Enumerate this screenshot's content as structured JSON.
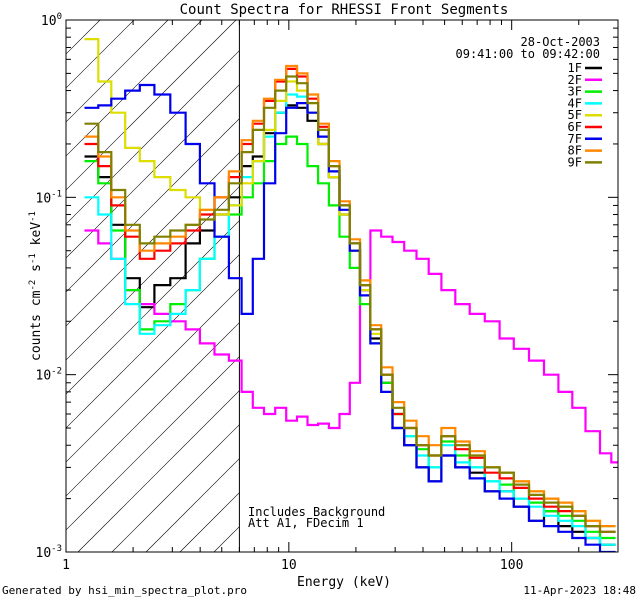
{
  "chart_data": {
    "type": "line",
    "title": "Count Spectra for RHESSI Front Segments",
    "xlabel": "Energy (keV)",
    "ylabel": "counts cm^-2 s^-1 keV^-1",
    "ylabel_parts": {
      "base": "counts cm",
      "exp1": "-2",
      "s": " s",
      "exp2": "-1",
      "kev": " keV",
      "exp3": "-1"
    },
    "xscale": "log",
    "yscale": "log",
    "xlim": [
      1,
      300
    ],
    "ylim": [
      0.001,
      1
    ],
    "x_ticks": [
      {
        "value": 10,
        "label": "10"
      },
      {
        "value": 100,
        "label": "100"
      }
    ],
    "x_edge_label": "1",
    "y_ticks": [
      {
        "value": 1,
        "base": "10",
        "exp": "0"
      },
      {
        "value": 0.1,
        "base": "10",
        "exp": "-1"
      },
      {
        "value": 0.01,
        "base": "10",
        "exp": "-2"
      },
      {
        "value": 0.001,
        "base": "10",
        "exp": "-3"
      }
    ],
    "date": "28-Oct-2003",
    "time_range": "09:41:00 to 09:42:00",
    "shaded_region_upper_keV": 6,
    "annotations": [
      "Includes Background",
      "Att A1, FDecim 1"
    ],
    "footer_left": "Generated by hsi_min_spectra_plot.pro",
    "footer_right": "11-Apr-2023 18:48",
    "series": [
      {
        "name": "1F",
        "color": "#000000",
        "x": [
          1.3,
          1.5,
          1.7,
          2.0,
          2.3,
          2.7,
          3.2,
          3.7,
          4.3,
          5.0,
          5.8,
          6.5,
          7.3,
          8.2,
          9.2,
          10.3,
          11.5,
          12.8,
          14.3,
          16.0,
          17.8,
          19.8,
          22.0,
          24.5,
          27.5,
          31,
          35,
          40,
          45,
          52,
          60,
          70,
          82,
          95,
          110,
          130,
          150,
          175,
          200,
          230,
          270
        ],
        "y": [
          0.17,
          0.13,
          0.07,
          0.035,
          0.024,
          0.032,
          0.035,
          0.055,
          0.065,
          0.08,
          0.1,
          0.15,
          0.17,
          0.23,
          0.3,
          0.33,
          0.32,
          0.27,
          0.2,
          0.13,
          0.08,
          0.05,
          0.03,
          0.016,
          0.009,
          0.005,
          0.004,
          0.003,
          0.0025,
          0.0035,
          0.003,
          0.0028,
          0.0022,
          0.0022,
          0.0018,
          0.0015,
          0.0017,
          0.0014,
          0.0013,
          0.0012,
          0.0011
        ]
      },
      {
        "name": "2F",
        "color": "#ff00ff",
        "x": [
          1.3,
          1.5,
          1.7,
          2.0,
          2.3,
          2.7,
          3.2,
          3.7,
          4.3,
          5.0,
          5.8,
          6.5,
          7.3,
          8.2,
          9.2,
          10.3,
          11.5,
          12.8,
          14.3,
          16.0,
          17.8,
          19.8,
          22.0,
          24.5,
          27.5,
          31,
          35,
          40,
          45,
          52,
          60,
          70,
          82,
          95,
          110,
          130,
          150,
          175,
          200,
          230,
          270,
          290
        ],
        "y": [
          0.065,
          0.055,
          0.045,
          0.03,
          0.025,
          0.022,
          0.02,
          0.018,
          0.015,
          0.013,
          0.012,
          0.008,
          0.0065,
          0.006,
          0.0065,
          0.0055,
          0.0058,
          0.0052,
          0.0053,
          0.005,
          0.006,
          0.009,
          0.03,
          0.065,
          0.06,
          0.056,
          0.05,
          0.045,
          0.037,
          0.03,
          0.025,
          0.022,
          0.02,
          0.016,
          0.014,
          0.012,
          0.01,
          0.008,
          0.0065,
          0.0048,
          0.0036,
          0.0032
        ]
      },
      {
        "name": "3F",
        "color": "#00ee00",
        "x": [
          1.3,
          1.5,
          1.7,
          2.0,
          2.3,
          2.7,
          3.2,
          3.7,
          4.3,
          5.0,
          5.8,
          6.5,
          7.3,
          8.2,
          9.2,
          10.3,
          11.5,
          12.8,
          14.3,
          16.0,
          17.8,
          19.8,
          22.0,
          24.5,
          27.5,
          31,
          35,
          40,
          45,
          52,
          60,
          70,
          82,
          95,
          110,
          130,
          150,
          175,
          200,
          230,
          270
        ],
        "y": [
          0.16,
          0.12,
          0.065,
          0.03,
          0.018,
          0.02,
          0.025,
          0.03,
          0.045,
          0.06,
          0.08,
          0.1,
          0.12,
          0.16,
          0.2,
          0.22,
          0.2,
          0.15,
          0.12,
          0.09,
          0.06,
          0.04,
          0.025,
          0.015,
          0.009,
          0.006,
          0.0045,
          0.0038,
          0.003,
          0.0042,
          0.0035,
          0.003,
          0.0025,
          0.0024,
          0.002,
          0.0019,
          0.0017,
          0.0016,
          0.0015,
          0.0013,
          0.0012
        ]
      },
      {
        "name": "4F",
        "color": "#00ffff",
        "x": [
          1.3,
          1.5,
          1.7,
          2.0,
          2.3,
          2.7,
          3.2,
          3.7,
          4.3,
          5.0,
          5.8,
          6.5,
          7.3,
          8.2,
          9.2,
          10.3,
          11.5,
          12.8,
          14.3,
          16.0,
          17.8,
          19.8,
          22.0,
          24.5,
          27.5,
          31,
          35,
          40,
          45,
          52,
          60,
          70,
          82,
          95,
          110,
          130,
          150,
          175,
          200,
          230,
          270
        ],
        "y": [
          0.1,
          0.08,
          0.045,
          0.025,
          0.017,
          0.019,
          0.022,
          0.03,
          0.045,
          0.06,
          0.09,
          0.13,
          0.16,
          0.22,
          0.3,
          0.38,
          0.37,
          0.3,
          0.22,
          0.14,
          0.09,
          0.055,
          0.032,
          0.018,
          0.01,
          0.006,
          0.0045,
          0.0035,
          0.003,
          0.004,
          0.0032,
          0.003,
          0.0025,
          0.0022,
          0.002,
          0.0018,
          0.0016,
          0.0015,
          0.0014,
          0.0012,
          0.0011
        ]
      },
      {
        "name": "5F",
        "color": "#dddd00",
        "x": [
          1.3,
          1.5,
          1.7,
          2.0,
          2.3,
          2.7,
          3.2,
          3.7,
          4.3,
          5.0,
          5.8,
          6.5,
          7.3,
          8.2,
          9.2,
          10.3,
          11.5,
          12.8,
          14.3,
          16.0,
          17.8,
          19.8,
          22.0,
          24.5,
          27.5,
          31,
          35,
          40,
          45,
          52,
          60,
          70,
          82,
          95,
          110,
          130,
          150,
          175,
          200,
          230,
          270
        ],
        "y": [
          0.78,
          0.45,
          0.3,
          0.19,
          0.16,
          0.13,
          0.11,
          0.1,
          0.085,
          0.08,
          0.09,
          0.12,
          0.16,
          0.24,
          0.35,
          0.45,
          0.4,
          0.3,
          0.2,
          0.13,
          0.08,
          0.05,
          0.03,
          0.017,
          0.01,
          0.006,
          0.005,
          0.004,
          0.0035,
          0.0045,
          0.004,
          0.0035,
          0.003,
          0.0028,
          0.0025,
          0.0022,
          0.002,
          0.0018,
          0.0017,
          0.0015,
          0.0014
        ]
      },
      {
        "name": "6F",
        "color": "#ff0000",
        "x": [
          1.3,
          1.5,
          1.7,
          2.0,
          2.3,
          2.7,
          3.2,
          3.7,
          4.3,
          5.0,
          5.8,
          6.5,
          7.3,
          8.2,
          9.2,
          10.3,
          11.5,
          12.8,
          14.3,
          16.0,
          17.8,
          19.8,
          22.0,
          24.5,
          27.5,
          31,
          35,
          40,
          45,
          52,
          60,
          70,
          82,
          95,
          110,
          130,
          150,
          175,
          200,
          230,
          270
        ],
        "y": [
          0.2,
          0.15,
          0.09,
          0.06,
          0.045,
          0.05,
          0.055,
          0.065,
          0.08,
          0.1,
          0.13,
          0.2,
          0.26,
          0.35,
          0.45,
          0.53,
          0.48,
          0.36,
          0.25,
          0.15,
          0.09,
          0.055,
          0.032,
          0.018,
          0.01,
          0.006,
          0.005,
          0.004,
          0.0035,
          0.0045,
          0.0038,
          0.0034,
          0.0028,
          0.0026,
          0.0023,
          0.002,
          0.0018,
          0.0017,
          0.0016,
          0.0014,
          0.0013
        ]
      },
      {
        "name": "7F",
        "color": "#0000ee",
        "x": [
          1.3,
          1.5,
          1.7,
          2.0,
          2.3,
          2.7,
          3.2,
          3.7,
          4.3,
          5.0,
          5.8,
          6.5,
          7.3,
          8.2,
          9.2,
          10.3,
          11.5,
          12.8,
          14.3,
          16.0,
          17.8,
          19.8,
          22.0,
          24.5,
          27.5,
          31,
          35,
          40,
          45,
          52,
          60,
          70,
          82,
          95,
          110,
          130,
          150,
          175,
          200,
          230,
          270
        ],
        "y": [
          0.32,
          0.33,
          0.36,
          0.4,
          0.43,
          0.38,
          0.3,
          0.2,
          0.12,
          0.06,
          0.035,
          0.022,
          0.045,
          0.12,
          0.23,
          0.32,
          0.34,
          0.3,
          0.22,
          0.14,
          0.085,
          0.05,
          0.028,
          0.015,
          0.008,
          0.005,
          0.004,
          0.003,
          0.0025,
          0.0035,
          0.003,
          0.0026,
          0.0022,
          0.002,
          0.0018,
          0.0015,
          0.0014,
          0.0013,
          0.0012,
          0.0011,
          0.001
        ]
      },
      {
        "name": "8F",
        "color": "#ff8800",
        "x": [
          1.3,
          1.5,
          1.7,
          2.0,
          2.3,
          2.7,
          3.2,
          3.7,
          4.3,
          5.0,
          5.8,
          6.5,
          7.3,
          8.2,
          9.2,
          10.3,
          11.5,
          12.8,
          14.3,
          16.0,
          17.8,
          19.8,
          22.0,
          24.5,
          27.5,
          31,
          35,
          40,
          45,
          52,
          60,
          70,
          82,
          95,
          110,
          130,
          150,
          175,
          200,
          230,
          270
        ],
        "y": [
          0.22,
          0.17,
          0.1,
          0.065,
          0.05,
          0.055,
          0.06,
          0.07,
          0.085,
          0.1,
          0.14,
          0.21,
          0.27,
          0.36,
          0.46,
          0.55,
          0.5,
          0.38,
          0.26,
          0.16,
          0.095,
          0.058,
          0.034,
          0.019,
          0.011,
          0.007,
          0.0055,
          0.0045,
          0.004,
          0.005,
          0.0042,
          0.0037,
          0.003,
          0.0028,
          0.0025,
          0.0022,
          0.002,
          0.0019,
          0.0017,
          0.0015,
          0.0014
        ]
      },
      {
        "name": "9F",
        "color": "#808000",
        "x": [
          1.3,
          1.5,
          1.7,
          2.0,
          2.3,
          2.7,
          3.2,
          3.7,
          4.3,
          5.0,
          5.8,
          6.5,
          7.3,
          8.2,
          9.2,
          10.3,
          11.5,
          12.8,
          14.3,
          16.0,
          17.8,
          19.8,
          22.0,
          24.5,
          27.5,
          31,
          35,
          40,
          45,
          52,
          60,
          70,
          82,
          95,
          110,
          130,
          150,
          175,
          200,
          230,
          270
        ],
        "y": [
          0.26,
          0.18,
          0.11,
          0.07,
          0.055,
          0.06,
          0.065,
          0.07,
          0.075,
          0.085,
          0.12,
          0.18,
          0.24,
          0.32,
          0.4,
          0.48,
          0.44,
          0.34,
          0.24,
          0.15,
          0.09,
          0.055,
          0.032,
          0.018,
          0.01,
          0.0065,
          0.005,
          0.004,
          0.0035,
          0.0045,
          0.004,
          0.0035,
          0.003,
          0.0028,
          0.0024,
          0.0021,
          0.0019,
          0.0018,
          0.0016,
          0.0014,
          0.0013
        ]
      }
    ]
  }
}
